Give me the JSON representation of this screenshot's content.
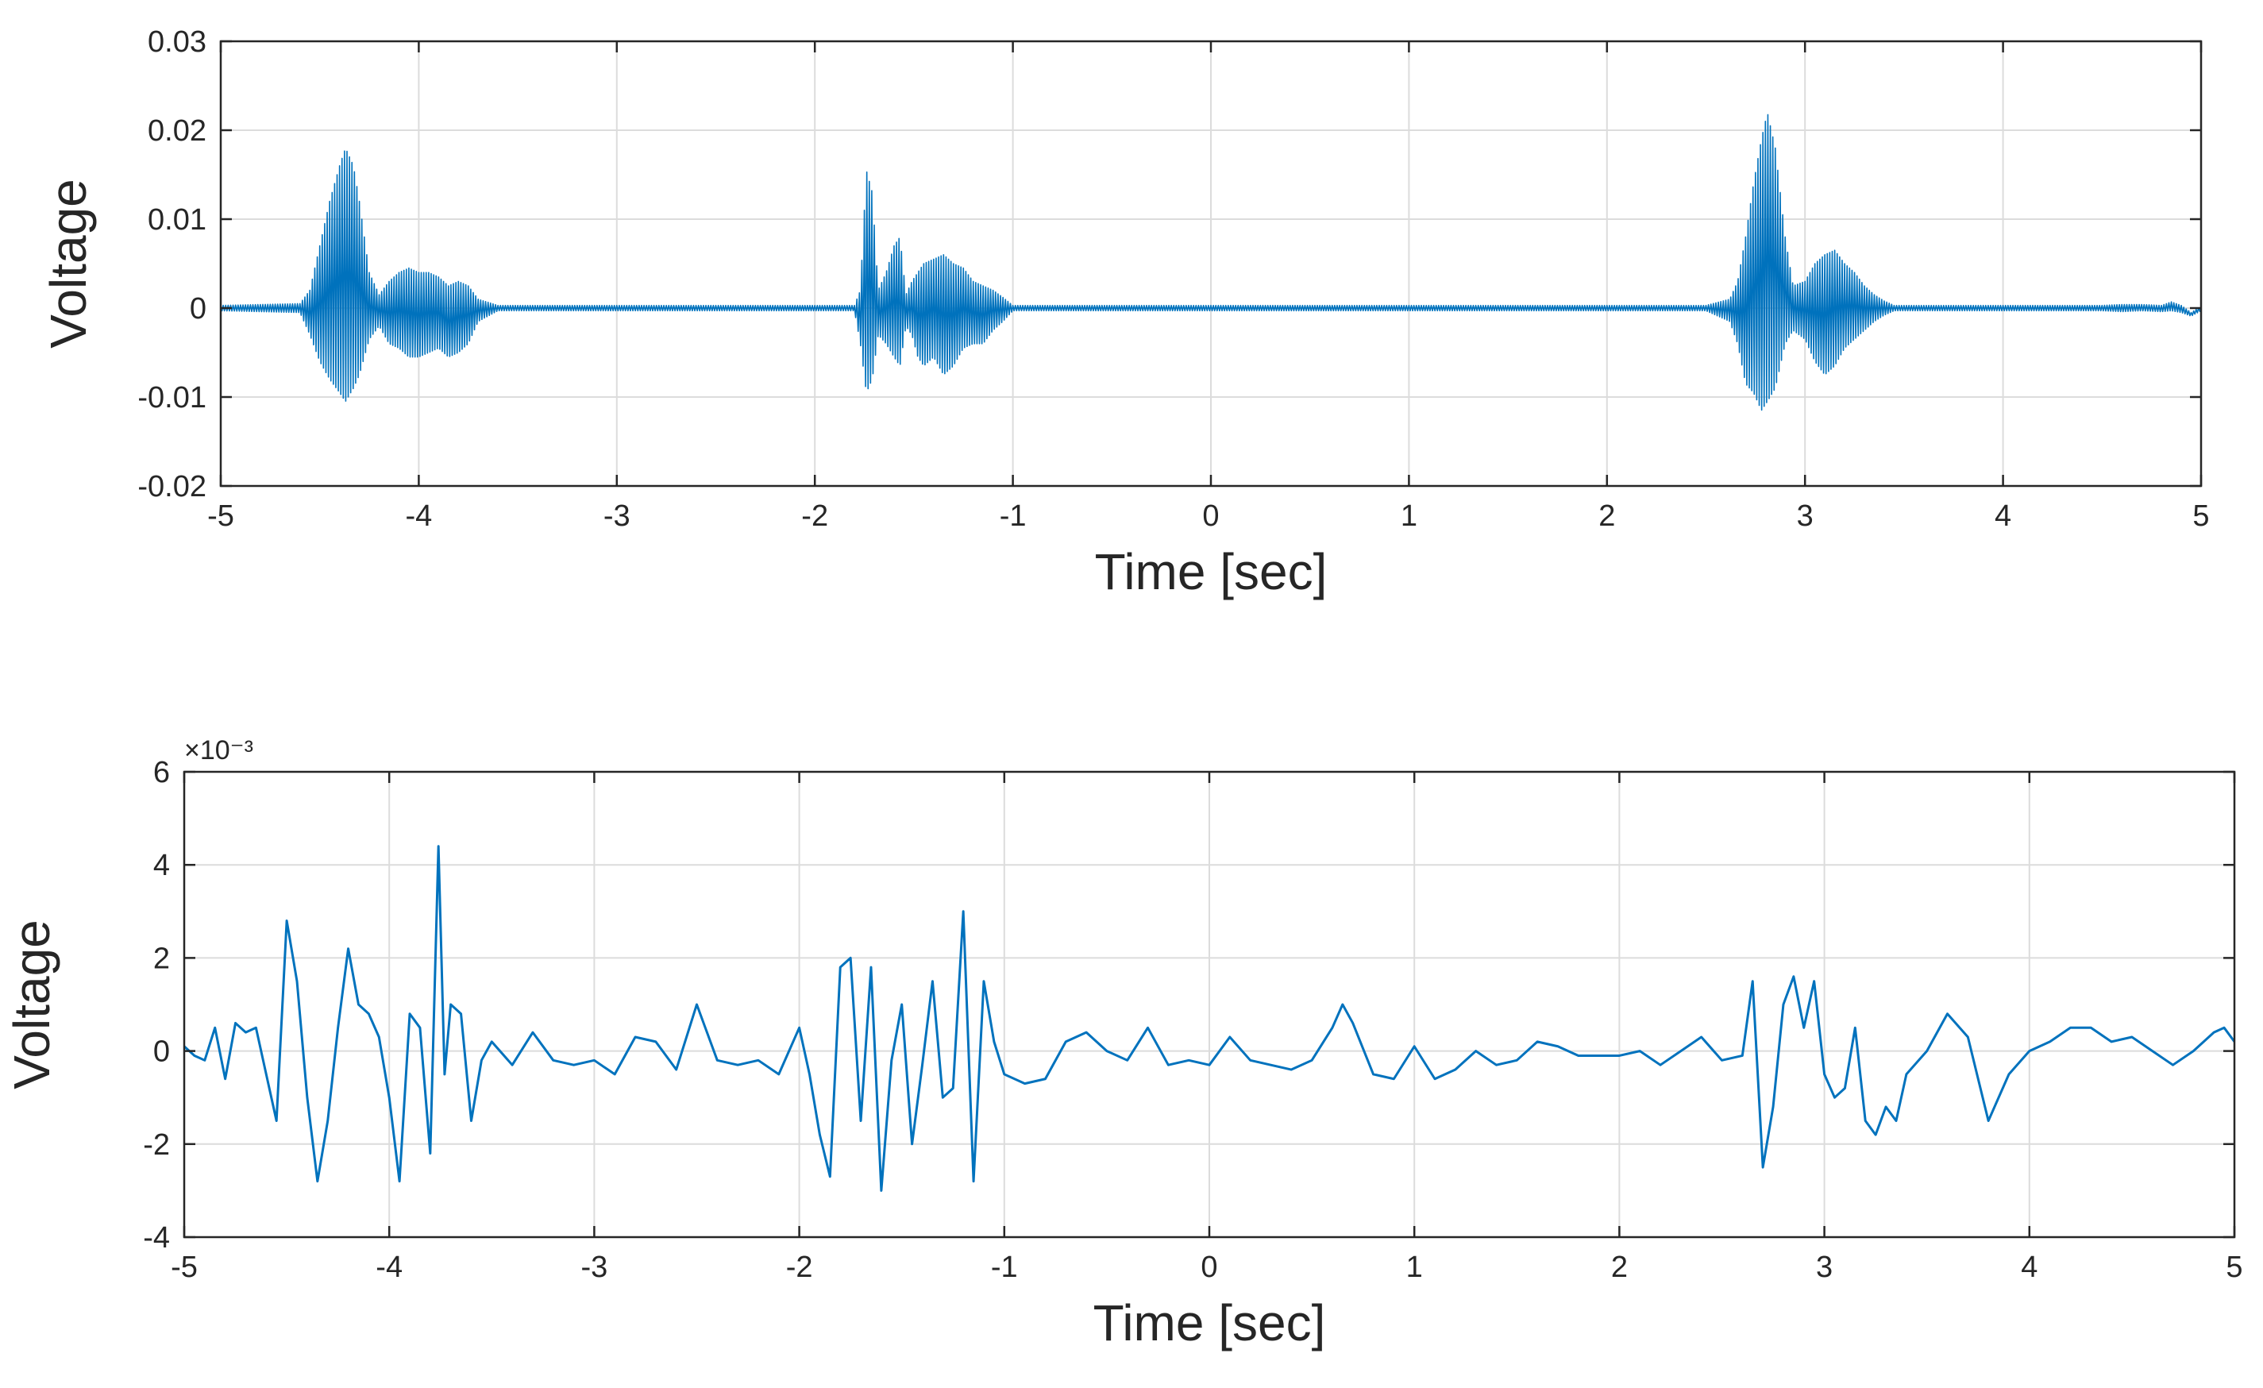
{
  "chart_data": [
    {
      "type": "line",
      "xlabel": "Time [sec]",
      "ylabel": "Voltage",
      "xlim": [
        -5,
        5
      ],
      "ylim": [
        -0.02,
        0.03
      ],
      "xticks": [
        -5,
        -4,
        -3,
        -2,
        -1,
        0,
        1,
        2,
        3,
        4,
        5
      ],
      "xtick_labels": [
        "-5",
        "-4",
        "-3",
        "-2",
        "-1",
        "0",
        "1",
        "2",
        "3",
        "4",
        "5"
      ],
      "yticks": [
        -0.02,
        -0.01,
        0,
        0.01,
        0.02,
        0.03
      ],
      "ytick_labels": [
        "-0.02",
        "-0.01",
        "0",
        "0.01",
        "0.02",
        "0.03"
      ],
      "exponent_label": "",
      "grid": true,
      "color": "#0072BD",
      "signal_kind": "envelope",
      "series": [
        {
          "x": [
            -5,
            -4.6,
            -4.55,
            -4.5,
            -4.45,
            -4.4,
            -4.37,
            -4.33,
            -4.3,
            -4.25,
            -4.2,
            -4.15,
            -4.1,
            -4.05,
            -4.0,
            -3.95,
            -3.9,
            -3.85,
            -3.8,
            -3.75,
            -3.7,
            -3.6,
            -2.0,
            -1.8,
            -1.77,
            -1.74,
            -1.71,
            -1.68,
            -1.64,
            -1.6,
            -1.57,
            -1.54,
            -1.51,
            -1.48,
            -1.45,
            -1.4,
            -1.35,
            -1.3,
            -1.25,
            -1.2,
            -1.15,
            -1.1,
            -1.05,
            -1.0,
            -0.95,
            2.5,
            2.62,
            2.66,
            2.7,
            2.74,
            2.78,
            2.81,
            2.85,
            2.9,
            2.94,
            3.0,
            3.05,
            3.1,
            3.15,
            3.2,
            3.25,
            3.3,
            3.35,
            3.4,
            3.45,
            4.5,
            4.6,
            4.7,
            4.8,
            4.85,
            4.9,
            4.95,
            5.0
          ],
          "upper": [
            0.0003,
            0.0005,
            0.002,
            0.007,
            0.012,
            0.016,
            0.018,
            0.016,
            0.012,
            0.004,
            0.0015,
            0.003,
            0.004,
            0.0045,
            0.004,
            0.004,
            0.0035,
            0.0025,
            0.003,
            0.0025,
            0.001,
            0.0003,
            0.0003,
            0.0003,
            0.002,
            0.0155,
            0.013,
            0.002,
            0.004,
            0.007,
            0.008,
            0.0015,
            0.003,
            0.004,
            0.005,
            0.0055,
            0.006,
            0.005,
            0.0045,
            0.003,
            0.0025,
            0.002,
            0.0012,
            0.0003,
            0.0003,
            0.0003,
            0.001,
            0.003,
            0.008,
            0.014,
            0.019,
            0.022,
            0.018,
            0.008,
            0.0025,
            0.003,
            0.005,
            0.006,
            0.0065,
            0.005,
            0.004,
            0.0025,
            0.0015,
            0.0008,
            0.0003,
            0.0003,
            0.0004,
            0.0004,
            0.0003,
            0.0007,
            0.0003,
            -0.0005,
            0.0002
          ],
          "lower": [
            -0.0003,
            -0.0005,
            -0.003,
            -0.006,
            -0.008,
            -0.0095,
            -0.0105,
            -0.009,
            -0.0075,
            -0.0035,
            -0.002,
            -0.004,
            -0.0045,
            -0.0055,
            -0.0055,
            -0.005,
            -0.0045,
            -0.0055,
            -0.005,
            -0.004,
            -0.0015,
            -0.0003,
            -0.0003,
            -0.0003,
            -0.004,
            -0.0095,
            -0.008,
            -0.003,
            -0.004,
            -0.0055,
            -0.0065,
            -0.002,
            -0.003,
            -0.0055,
            -0.0065,
            -0.0055,
            -0.0075,
            -0.0065,
            -0.0045,
            -0.004,
            -0.004,
            -0.0025,
            -0.0015,
            -0.0003,
            -0.0003,
            -0.0003,
            -0.0015,
            -0.004,
            -0.0085,
            -0.0095,
            -0.0115,
            -0.0105,
            -0.009,
            -0.004,
            -0.0025,
            -0.0035,
            -0.006,
            -0.0075,
            -0.0065,
            -0.0045,
            -0.0035,
            -0.0025,
            -0.0015,
            -0.0008,
            -0.0003,
            -0.0003,
            -0.0004,
            -0.0003,
            -0.0004,
            -0.0003,
            -0.0005,
            -0.0009,
            -0.0003
          ]
        }
      ]
    },
    {
      "type": "line",
      "xlabel": "Time [sec]",
      "ylabel": "Voltage",
      "xlim": [
        -5,
        5
      ],
      "ylim": [
        -4,
        6
      ],
      "xticks": [
        -5,
        -4,
        -3,
        -2,
        -1,
        0,
        1,
        2,
        3,
        4,
        5
      ],
      "xtick_labels": [
        "-5",
        "-4",
        "-3",
        "-2",
        "-1",
        "0",
        "1",
        "2",
        "3",
        "4",
        "5"
      ],
      "yticks": [
        -4,
        -2,
        0,
        2,
        4,
        6
      ],
      "ytick_labels": [
        "-4",
        "-2",
        "0",
        "2",
        "4",
        "6"
      ],
      "exponent_label": "×10⁻³",
      "grid": true,
      "color": "#0072BD",
      "signal_kind": "line",
      "series": [
        {
          "x": [
            -5.0,
            -4.95,
            -4.9,
            -4.85,
            -4.8,
            -4.75,
            -4.7,
            -4.65,
            -4.6,
            -4.55,
            -4.5,
            -4.45,
            -4.4,
            -4.35,
            -4.3,
            -4.25,
            -4.2,
            -4.15,
            -4.1,
            -4.05,
            -4.0,
            -3.95,
            -3.9,
            -3.85,
            -3.8,
            -3.76,
            -3.73,
            -3.7,
            -3.65,
            -3.6,
            -3.55,
            -3.5,
            -3.4,
            -3.3,
            -3.2,
            -3.1,
            -3.0,
            -2.9,
            -2.8,
            -2.7,
            -2.6,
            -2.5,
            -2.4,
            -2.3,
            -2.2,
            -2.1,
            -2.0,
            -1.95,
            -1.9,
            -1.85,
            -1.8,
            -1.75,
            -1.7,
            -1.65,
            -1.6,
            -1.55,
            -1.5,
            -1.45,
            -1.4,
            -1.35,
            -1.3,
            -1.25,
            -1.2,
            -1.15,
            -1.1,
            -1.05,
            -1.0,
            -0.9,
            -0.8,
            -0.7,
            -0.6,
            -0.5,
            -0.4,
            -0.3,
            -0.2,
            -0.1,
            0.0,
            0.1,
            0.2,
            0.3,
            0.4,
            0.5,
            0.6,
            0.65,
            0.7,
            0.8,
            0.9,
            1.0,
            1.1,
            1.2,
            1.3,
            1.4,
            1.5,
            1.6,
            1.7,
            1.8,
            1.9,
            2.0,
            2.1,
            2.2,
            2.3,
            2.4,
            2.5,
            2.6,
            2.65,
            2.7,
            2.75,
            2.8,
            2.85,
            2.9,
            2.95,
            3.0,
            3.05,
            3.1,
            3.15,
            3.2,
            3.25,
            3.3,
            3.35,
            3.4,
            3.5,
            3.6,
            3.7,
            3.8,
            3.9,
            4.0,
            4.1,
            4.2,
            4.3,
            4.4,
            4.5,
            4.6,
            4.7,
            4.8,
            4.9,
            4.95,
            5.0
          ],
          "values": [
            0.1,
            -0.1,
            -0.2,
            0.5,
            -0.6,
            0.6,
            0.4,
            0.5,
            -0.5,
            -1.5,
            2.8,
            1.5,
            -1.0,
            -2.8,
            -1.5,
            0.5,
            2.2,
            1.0,
            0.8,
            0.3,
            -1.0,
            -2.8,
            0.8,
            0.5,
            -2.2,
            4.4,
            -0.5,
            1.0,
            0.8,
            -1.5,
            -0.2,
            0.2,
            -0.3,
            0.4,
            -0.2,
            -0.3,
            -0.2,
            -0.5,
            0.3,
            0.2,
            -0.4,
            1.0,
            -0.2,
            -0.3,
            -0.2,
            -0.5,
            0.5,
            -0.5,
            -1.8,
            -2.7,
            1.8,
            2.0,
            -1.5,
            1.8,
            -3.0,
            -0.2,
            1.0,
            -2.0,
            -0.3,
            1.5,
            -1.0,
            -0.8,
            3.0,
            -2.8,
            1.5,
            0.2,
            -0.5,
            -0.7,
            -0.6,
            0.2,
            0.4,
            0.0,
            -0.2,
            0.5,
            -0.3,
            -0.2,
            -0.3,
            0.3,
            -0.2,
            -0.3,
            -0.4,
            -0.2,
            0.5,
            1.0,
            0.6,
            -0.5,
            -0.6,
            0.1,
            -0.6,
            -0.4,
            0.0,
            -0.3,
            -0.2,
            0.2,
            0.1,
            -0.1,
            -0.1,
            -0.1,
            0.0,
            -0.3,
            0.0,
            0.3,
            -0.2,
            -0.1,
            1.5,
            -2.5,
            -1.2,
            1.0,
            1.6,
            0.5,
            1.5,
            -0.5,
            -1.0,
            -0.8,
            0.5,
            -1.5,
            -1.8,
            -1.2,
            -1.5,
            -0.5,
            0.0,
            0.8,
            0.3,
            -1.5,
            -0.5,
            0.0,
            0.2,
            0.5,
            0.5,
            0.2,
            0.3,
            0.0,
            -0.3,
            0.0,
            0.4,
            0.5,
            0.2
          ]
        }
      ]
    }
  ]
}
